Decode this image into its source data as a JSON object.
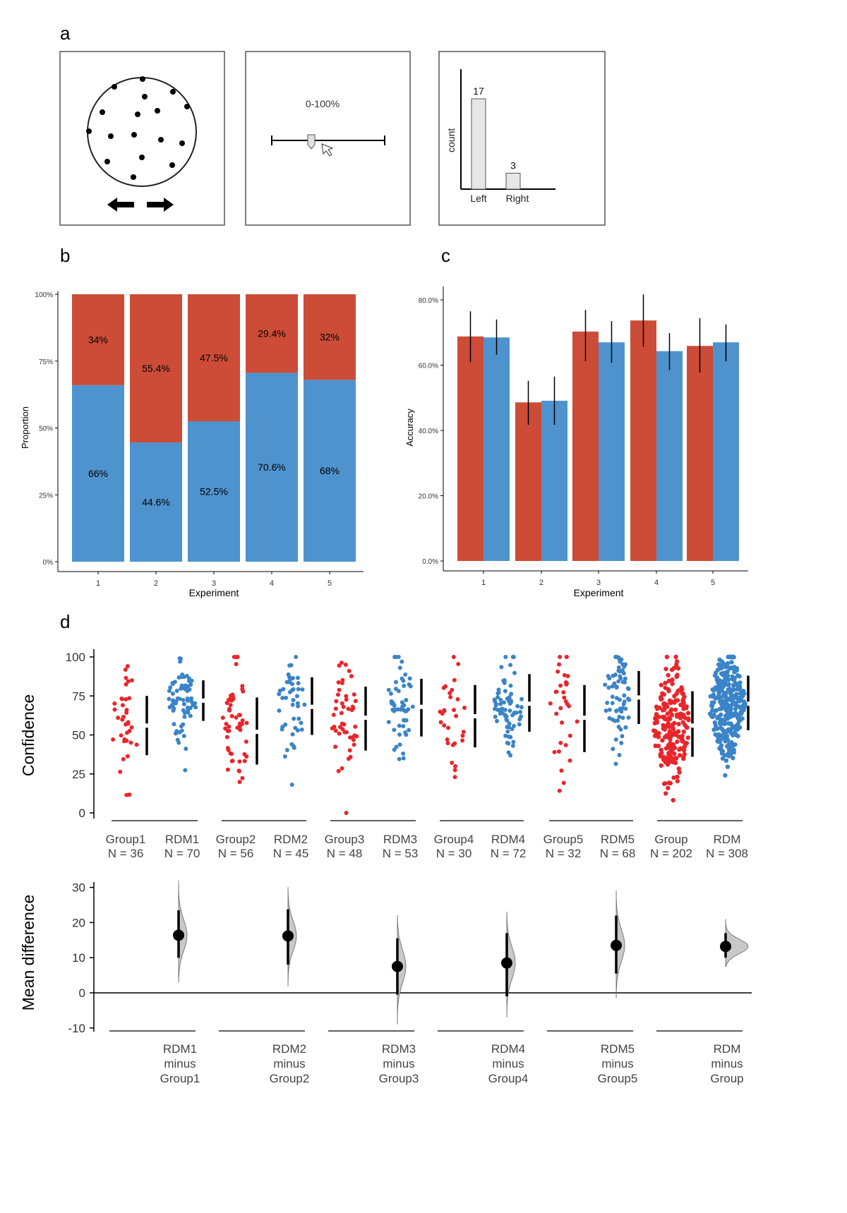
{
  "panel_labels": [
    "a",
    "b",
    "c",
    "d"
  ],
  "colors": {
    "red": "#CC4C37",
    "blue": "#4E93CE",
    "dot_red": "#E8262B",
    "dot_blue": "#3A84C7",
    "gray": "#E6E6E6"
  },
  "panel_a": {
    "slider_label": "0-100%",
    "hist_ylabel": "count",
    "bars": [
      {
        "label": "Left",
        "value": 17
      },
      {
        "label": "Right",
        "value": 3
      }
    ]
  },
  "chart_data": [
    {
      "id": "b",
      "type": "bar",
      "stacked": true,
      "xlabel": "Experiment",
      "ylabel": "Proportion",
      "categories": [
        "1",
        "2",
        "3",
        "4",
        "5"
      ],
      "yticks": [
        "0%",
        "25%",
        "50%",
        "75%",
        "100%"
      ],
      "series": [
        {
          "name": "blue",
          "values": [
            66,
            44.6,
            52.5,
            70.6,
            68
          ],
          "labels": [
            "66%",
            "44.6%",
            "52.5%",
            "70.6%",
            "68%"
          ]
        },
        {
          "name": "red",
          "values": [
            34,
            55.4,
            47.5,
            29.4,
            32
          ],
          "labels": [
            "34%",
            "55.4%",
            "47.5%",
            "29.4%",
            "32%"
          ]
        }
      ],
      "ylim": [
        0,
        100
      ]
    },
    {
      "id": "c",
      "type": "bar",
      "xlabel": "Experiment",
      "ylabel": "Accuracy",
      "categories": [
        "1",
        "2",
        "3",
        "4",
        "5"
      ],
      "yticks": [
        "0.0%",
        "20.0%",
        "40.0%",
        "60.0%",
        "80.0%"
      ],
      "ylim": [
        0,
        85
      ],
      "series": [
        {
          "name": "red",
          "values": [
            68.8,
            48.6,
            70.3,
            73.7,
            65.9
          ],
          "err_low": [
            60.9,
            41.7,
            61.2,
            65.6,
            57.7
          ],
          "err_high": [
            76.5,
            55.2,
            76.9,
            81.7,
            74.4
          ]
        },
        {
          "name": "blue",
          "values": [
            68.5,
            49.1,
            67,
            64.3,
            67
          ],
          "err_low": [
            63.2,
            41.7,
            60.7,
            58.5,
            61.2
          ],
          "err_high": [
            74,
            56.5,
            73.5,
            69.8,
            72.5
          ]
        }
      ]
    },
    {
      "id": "d_top",
      "type": "scatter",
      "ylabel": "Confidence",
      "ylim": [
        0,
        100
      ],
      "yticks": [
        "0",
        "25",
        "50",
        "75",
        "100"
      ],
      "groups": [
        {
          "name": "Group1",
          "n_label": "N = 36",
          "n": 36,
          "color": "red",
          "mean": 56,
          "sd": 19,
          "ci": [
            37,
            75
          ]
        },
        {
          "name": "RDM1",
          "n_label": "N = 70",
          "n": 70,
          "color": "blue",
          "mean": 72,
          "sd": 13,
          "ci": [
            59,
            85
          ]
        },
        {
          "name": "Group2",
          "n_label": "N = 56",
          "n": 56,
          "color": "red",
          "mean": 52,
          "sd": 21,
          "ci": [
            31,
            74
          ]
        },
        {
          "name": "RDM2",
          "n_label": "N = 45",
          "n": 45,
          "color": "blue",
          "mean": 68,
          "sd": 19,
          "ci": [
            50,
            87
          ]
        },
        {
          "name": "Group3",
          "n_label": "N = 48",
          "n": 48,
          "color": "red",
          "mean": 61,
          "sd": 20,
          "ci": [
            40,
            81
          ]
        },
        {
          "name": "RDM3",
          "n_label": "N = 53",
          "n": 53,
          "color": "blue",
          "mean": 68,
          "sd": 18,
          "ci": [
            49,
            86
          ]
        },
        {
          "name": "Group4",
          "n_label": "N = 30",
          "n": 30,
          "color": "red",
          "mean": 62,
          "sd": 20,
          "ci": [
            42,
            82
          ]
        },
        {
          "name": "RDM4",
          "n_label": "N = 72",
          "n": 72,
          "color": "blue",
          "mean": 70,
          "sd": 17,
          "ci": [
            52,
            89
          ]
        },
        {
          "name": "Group5",
          "n_label": "N = 32",
          "n": 32,
          "color": "red",
          "mean": 61,
          "sd": 21,
          "ci": [
            39,
            82
          ]
        },
        {
          "name": "RDM5",
          "n_label": "N = 68",
          "n": 68,
          "color": "blue",
          "mean": 74,
          "sd": 16,
          "ci": [
            57,
            91
          ]
        },
        {
          "name": "Group",
          "n_label": "N = 202",
          "n": 202,
          "color": "red",
          "mean": 56,
          "sd": 20,
          "ci": [
            36,
            78
          ]
        },
        {
          "name": "RDM",
          "n_label": "N = 308",
          "n": 308,
          "color": "blue",
          "mean": 70,
          "sd": 17,
          "ci": [
            53,
            88
          ]
        }
      ]
    },
    {
      "id": "d_bottom",
      "type": "scatter",
      "ylabel": "Mean difference",
      "ylim": [
        -10,
        33
      ],
      "yticks": [
        "-10",
        "0",
        "10",
        "20",
        "30"
      ],
      "comparisons": [
        {
          "label": [
            "RDM1",
            "minus",
            "Group1"
          ],
          "mean": 16.4,
          "ci": [
            10,
            23.5
          ],
          "range": [
            3,
            32
          ]
        },
        {
          "label": [
            "RDM2",
            "minus",
            "Group2"
          ],
          "mean": 16.2,
          "ci": [
            8,
            23.8
          ],
          "range": [
            2,
            30
          ]
        },
        {
          "label": [
            "RDM3",
            "minus",
            "Group3"
          ],
          "mean": 7.5,
          "ci": [
            -0.5,
            15.5
          ],
          "range": [
            -9,
            22
          ]
        },
        {
          "label": [
            "RDM4",
            "minus",
            "Group4"
          ],
          "mean": 8.5,
          "ci": [
            -1,
            17
          ],
          "range": [
            -7,
            23
          ]
        },
        {
          "label": [
            "RDM5",
            "minus",
            "Group5"
          ],
          "mean": 13.5,
          "ci": [
            5.5,
            22
          ],
          "range": [
            -1.5,
            29
          ]
        },
        {
          "label": [
            "RDM",
            "minus",
            "Group"
          ],
          "mean": 13.2,
          "ci": [
            10,
            17
          ],
          "range": [
            7.5,
            21
          ]
        }
      ]
    }
  ]
}
